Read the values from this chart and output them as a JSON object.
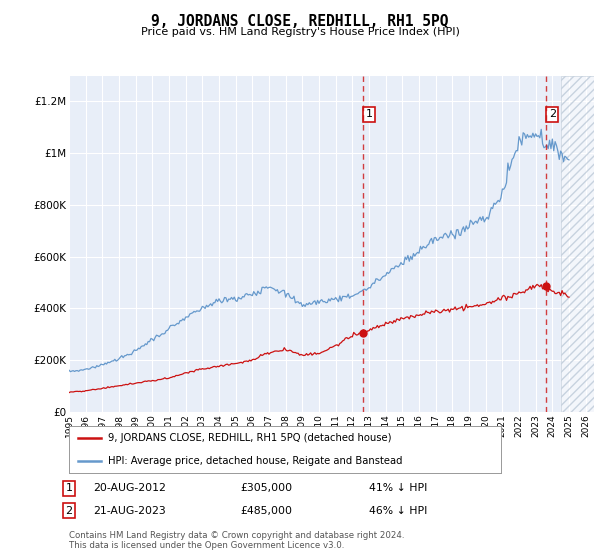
{
  "title": "9, JORDANS CLOSE, REDHILL, RH1 5PQ",
  "subtitle": "Price paid vs. HM Land Registry's House Price Index (HPI)",
  "hpi_label": "HPI: Average price, detached house, Reigate and Banstead",
  "price_label": "9, JORDANS CLOSE, REDHILL, RH1 5PQ (detached house)",
  "footnote": "Contains HM Land Registry data © Crown copyright and database right 2024.\nThis data is licensed under the Open Government Licence v3.0.",
  "annotation1_label": "1",
  "annotation1_date": "20-AUG-2012",
  "annotation1_price": "£305,000",
  "annotation1_hpi": "41% ↓ HPI",
  "annotation1_year": 2012.64,
  "annotation1_value": 305000,
  "annotation2_label": "2",
  "annotation2_date": "21-AUG-2023",
  "annotation2_price": "£485,000",
  "annotation2_hpi": "46% ↓ HPI",
  "annotation2_year": 2023.64,
  "annotation2_value": 485000,
  "ylim": [
    0,
    1300000
  ],
  "xlim_start": 1995,
  "xlim_end": 2026.5,
  "background_color": "#e8eef8",
  "hpi_color": "#6699cc",
  "price_color": "#cc1111",
  "grid_color": "#ffffff",
  "hatch_start": 2024.5,
  "hatch_color": "#d0d8e8"
}
